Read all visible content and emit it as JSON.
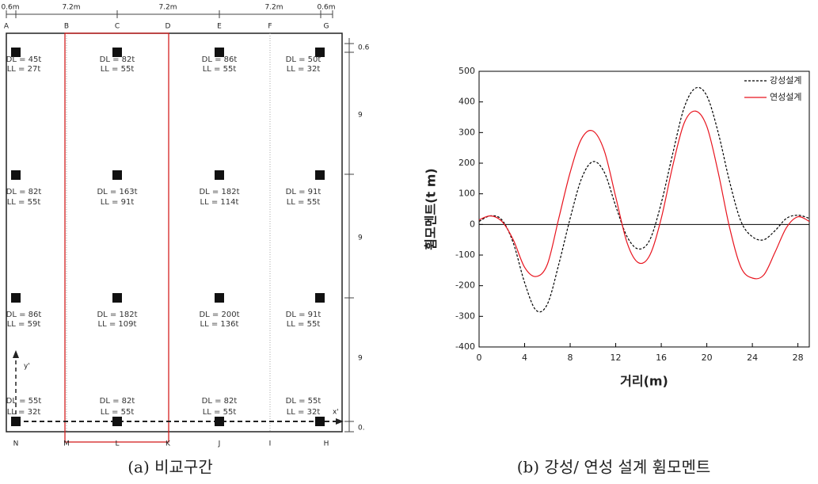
{
  "plan": {
    "dimensions_top": [
      "0.6m",
      "7.2m",
      "7.2m",
      "7.2m",
      "0.6m"
    ],
    "grid_top": [
      "A",
      "B",
      "C",
      "D",
      "E",
      "F",
      "G"
    ],
    "grid_bottom": [
      "N",
      "M",
      "L",
      "K",
      "J",
      "I",
      "H"
    ],
    "dimensions_right": [
      "0.6",
      "9",
      "9",
      "9",
      "0."
    ],
    "loads": [
      [
        {
          "dl": "DL = 45t",
          "ll": "LL = 27t"
        },
        {
          "dl": "DL = 82t",
          "ll": "LL = 55t"
        },
        {
          "dl": "DL = 86t",
          "ll": "LL = 55t"
        },
        {
          "dl": "DL = 50t",
          "ll": "LL = 32t"
        }
      ],
      [
        {
          "dl": "DL = 82t",
          "ll": "LL = 55t"
        },
        {
          "dl": "DL = 163t",
          "ll": "LL = 91t"
        },
        {
          "dl": "DL = 182t",
          "ll": "LL = 114t"
        },
        {
          "dl": "DL = 91t",
          "ll": "LL = 55t"
        }
      ],
      [
        {
          "dl": "DL = 86t",
          "ll": "LL = 59t"
        },
        {
          "dl": "DL = 182t",
          "ll": "LL = 109t"
        },
        {
          "dl": "DL = 200t",
          "ll": "LL = 136t"
        },
        {
          "dl": "DL = 91t",
          "ll": "LL = 55t"
        }
      ],
      [
        {
          "dl": "DL = 55t",
          "ll": "LL = 32t"
        },
        {
          "dl": "DL = 82t",
          "ll": "LL = 55t"
        },
        {
          "dl": "DL = 82t",
          "ll": "LL = 55t"
        },
        {
          "dl": "DL = 55t",
          "ll": "LL = 32t"
        }
      ]
    ],
    "axis_y": "y'",
    "axis_x": "x'",
    "caption": "(a) 비교구간"
  },
  "chart_data": {
    "type": "line",
    "caption": "(b) 강성/ 연성 설계 휨모멘트",
    "x_label": "거리(m)",
    "y_label": "휨모멘트(t m)",
    "x": [
      0,
      1,
      2,
      3,
      4,
      5,
      6,
      7,
      8,
      9,
      10,
      11,
      12,
      13,
      14,
      15,
      16,
      17,
      18,
      19,
      20,
      21,
      22,
      23,
      24,
      25,
      26,
      27,
      28,
      29
    ],
    "series": [
      {
        "name": "강성설계",
        "color": "#000000",
        "dash": true,
        "values": [
          10,
          28,
          15,
          -60,
          -190,
          -280,
          -260,
          -130,
          20,
          150,
          205,
          170,
          60,
          -40,
          -80,
          -50,
          70,
          230,
          380,
          445,
          420,
          300,
          140,
          10,
          -40,
          -50,
          -20,
          20,
          30,
          20
        ]
      },
      {
        "name": "연성설계",
        "color": "#e8141e",
        "dash": false,
        "values": [
          15,
          28,
          10,
          -50,
          -140,
          -170,
          -130,
          20,
          170,
          280,
          305,
          240,
          90,
          -60,
          -125,
          -100,
          20,
          190,
          330,
          370,
          320,
          170,
          -10,
          -140,
          -175,
          -165,
          -90,
          -10,
          25,
          10
        ]
      }
    ],
    "xlim": [
      0,
      29
    ],
    "ylim": [
      -400,
      500
    ],
    "xticks": [
      0,
      4,
      8,
      12,
      16,
      20,
      24,
      28
    ],
    "yticks": [
      -400,
      -300,
      -200,
      -100,
      0,
      100,
      200,
      300,
      400,
      500
    ],
    "zero_line": true
  }
}
